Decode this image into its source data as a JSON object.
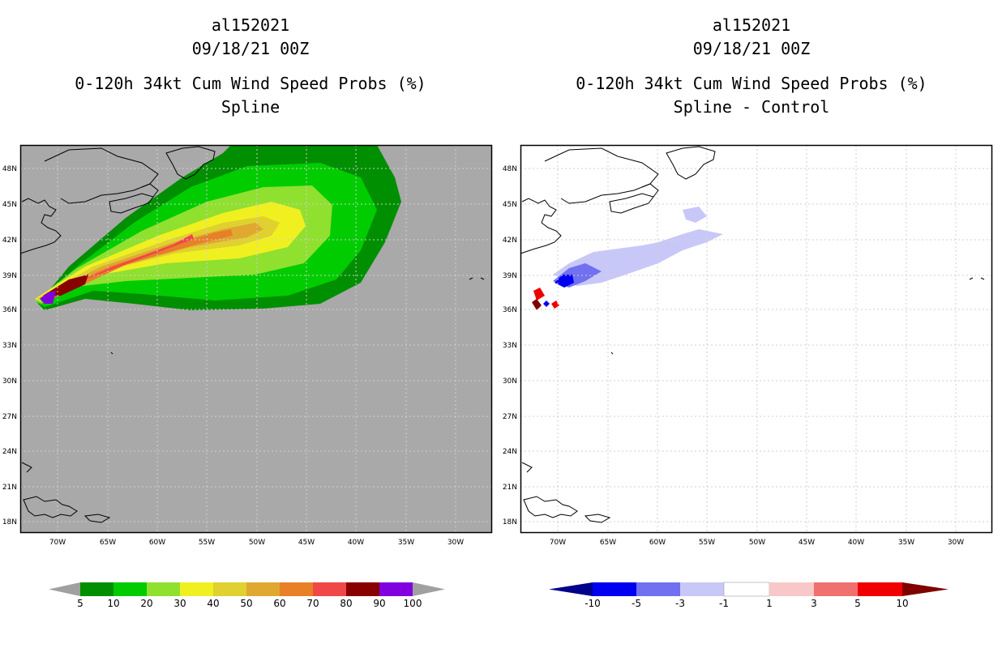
{
  "colors": {
    "ocean_left": "#a9a9a9",
    "ocean_right": "#ffffff",
    "coast": "#000000",
    "grid": "#cfcfcf",
    "prob_scale": [
      "#008f00",
      "#00cc00",
      "#90e030",
      "#f0f020",
      "#e0d030",
      "#e0a830",
      "#e88028",
      "#f04848",
      "#880000",
      "#8000e0"
    ],
    "diff_scale": [
      "#00008c",
      "#0000f0",
      "#7070f0",
      "#c8c8f8",
      "#ffffff",
      "#f8c8c8",
      "#f07070",
      "#f00000",
      "#800000"
    ],
    "arrow_grey": "#a0a0a0"
  },
  "left_panel": {
    "title": {
      "line1": "al152021",
      "line2": "09/18/21 00Z",
      "line3": "0-120h 34kt Cum Wind Speed Probs (%)",
      "line4": "Spline"
    },
    "colorbar_labels": [
      "5",
      "10",
      "20",
      "30",
      "40",
      "50",
      "60",
      "70",
      "80",
      "90",
      "100"
    ]
  },
  "right_panel": {
    "title": {
      "line1": "al152021",
      "line2": "09/18/21 00Z",
      "line3": "0-120h 34kt Cum Wind Speed Probs (%)",
      "line4": "Spline - Control"
    },
    "colorbar_labels": [
      "-10",
      "-5",
      "-3",
      "-1",
      "1",
      "3",
      "5",
      "10"
    ]
  },
  "map_axes": {
    "lat_labels": [
      "48N",
      "45N",
      "42N",
      "39N",
      "36N",
      "33N",
      "30N",
      "27N",
      "24N",
      "21N",
      "18N"
    ],
    "lon_labels": [
      "70W",
      "65W",
      "60W",
      "55W",
      "50W",
      "45W",
      "40W",
      "35W",
      "30W"
    ]
  }
}
